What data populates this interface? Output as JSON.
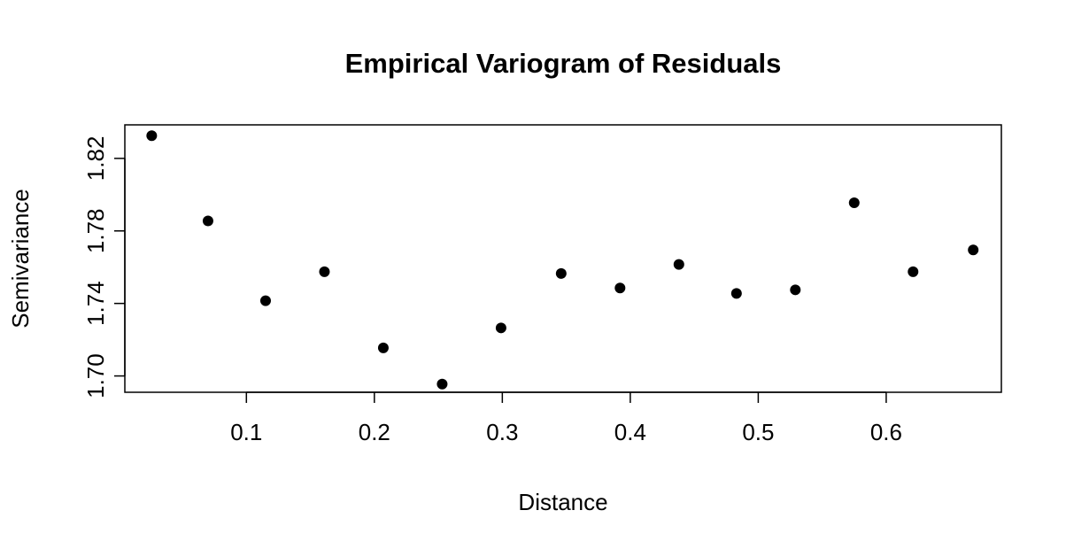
{
  "chart_data": {
    "type": "scatter",
    "title": "Empirical Variogram of Residuals",
    "xlabel": "Distance",
    "ylabel": "Semivariance",
    "xlim": [
      0.005,
      0.69
    ],
    "ylim": [
      1.691,
      1.8385
    ],
    "x_ticks": [
      0.1,
      0.2,
      0.3,
      0.4,
      0.5,
      0.6
    ],
    "x_tick_labels": [
      "0.1",
      "0.2",
      "0.3",
      "0.4",
      "0.5",
      "0.6"
    ],
    "y_ticks": [
      1.7,
      1.74,
      1.78,
      1.82
    ],
    "y_tick_labels": [
      "1.70",
      "1.74",
      "1.78",
      "1.82"
    ],
    "grid": false,
    "legend": "none",
    "point_color": "#000000",
    "series": [
      {
        "x": [
          0.026,
          0.07,
          0.115,
          0.161,
          0.207,
          0.253,
          0.299,
          0.346,
          0.392,
          0.438,
          0.483,
          0.529,
          0.575,
          0.621,
          0.668
        ],
        "y": [
          1.8325,
          1.7855,
          1.7415,
          1.7575,
          1.7155,
          1.6955,
          1.7265,
          1.7565,
          1.7485,
          1.7615,
          1.7455,
          1.7475,
          1.7955,
          1.7575,
          1.7695
        ]
      }
    ]
  }
}
